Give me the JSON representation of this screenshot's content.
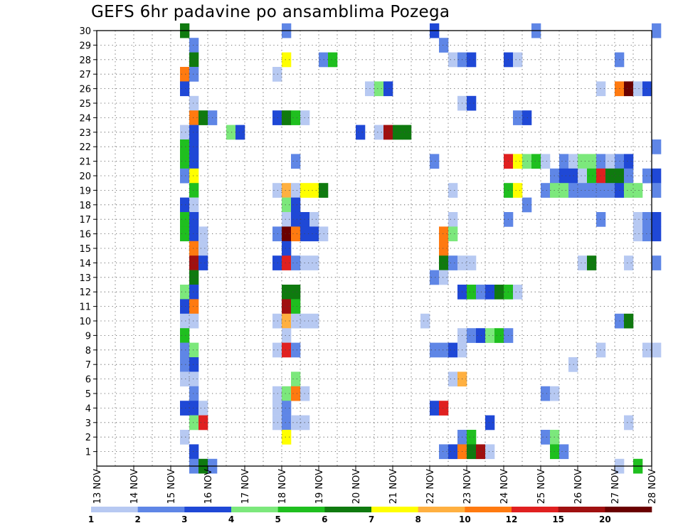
{
  "chart_data": {
    "type": "heatmap",
    "title": "GEFS 6hr padavine po ansamblima Pozega",
    "xlabel": "",
    "ylabel": "",
    "x_ticks": [
      "13 NOV",
      "14 NOV",
      "15 NOV",
      "16 NOV",
      "17 NOV",
      "18 NOV",
      "19 NOV",
      "20 NOV",
      "21 NOV",
      "22 NOV",
      "23 NOV",
      "24 NOV",
      "25 NOV",
      "26 NOV",
      "27 NOV",
      "28 NOV"
    ],
    "xlim": [
      "13 NOV 00Z",
      "28 NOV 00Z"
    ],
    "ylim": [
      0,
      30
    ],
    "y_ticks": [
      1,
      2,
      3,
      4,
      5,
      6,
      7,
      8,
      9,
      10,
      11,
      12,
      13,
      14,
      15,
      16,
      17,
      18,
      19,
      20,
      21,
      22,
      23,
      24,
      25,
      26,
      27,
      28,
      29,
      30
    ],
    "grid": true,
    "legend": {
      "placement": "bottom",
      "labels": [
        "1",
        "2",
        "3",
        "4",
        "5",
        "6",
        "7",
        "8",
        "10",
        "12",
        "15",
        "20"
      ],
      "colors": [
        "#b7c9f2",
        "#5f86e6",
        "#1f48d6",
        "#7ce87c",
        "#1fbf1f",
        "#0f7a0f",
        "#ffff00",
        "#ffb040",
        "#ff7a10",
        "#e02020",
        "#a01010",
        "#6a0000"
      ]
    },
    "cells": [
      [
        15.25,
        30,
        5
      ],
      [
        18.0,
        30,
        1
      ],
      [
        22.0,
        30,
        2
      ],
      [
        24.75,
        30,
        1
      ],
      [
        28.0,
        30,
        1
      ],
      [
        15.5,
        29,
        1
      ],
      [
        22.25,
        29,
        1
      ],
      [
        15.5,
        28,
        5
      ],
      [
        18.0,
        28,
        6
      ],
      [
        19.0,
        28,
        1
      ],
      [
        19.25,
        28,
        4
      ],
      [
        22.5,
        28,
        0
      ],
      [
        22.75,
        28,
        1
      ],
      [
        23.0,
        28,
        2
      ],
      [
        24.0,
        28,
        2
      ],
      [
        24.25,
        28,
        0
      ],
      [
        27.0,
        28,
        1
      ],
      [
        15.25,
        27,
        8
      ],
      [
        15.5,
        27,
        1
      ],
      [
        17.75,
        27,
        0
      ],
      [
        15.25,
        26,
        2
      ],
      [
        20.25,
        26,
        0
      ],
      [
        20.5,
        26,
        3
      ],
      [
        20.75,
        26,
        2
      ],
      [
        26.5,
        26,
        0
      ],
      [
        27.0,
        26,
        8
      ],
      [
        27.25,
        26,
        11
      ],
      [
        27.5,
        26,
        0
      ],
      [
        27.75,
        26,
        2
      ],
      [
        15.5,
        25,
        0
      ],
      [
        22.75,
        25,
        0
      ],
      [
        23.0,
        25,
        2
      ],
      [
        15.5,
        24,
        8
      ],
      [
        15.75,
        24,
        5
      ],
      [
        16.0,
        24,
        1
      ],
      [
        17.75,
        24,
        2
      ],
      [
        18.0,
        24,
        5
      ],
      [
        18.25,
        24,
        4
      ],
      [
        18.5,
        24,
        0
      ],
      [
        24.25,
        24,
        1
      ],
      [
        24.5,
        24,
        2
      ],
      [
        15.25,
        23,
        0
      ],
      [
        15.5,
        23,
        2
      ],
      [
        16.5,
        23,
        3
      ],
      [
        16.75,
        23,
        2
      ],
      [
        20.0,
        23,
        2
      ],
      [
        20.5,
        23,
        0
      ],
      [
        20.75,
        23,
        10
      ],
      [
        21.0,
        23,
        5
      ],
      [
        21.25,
        23,
        5
      ],
      [
        15.25,
        22,
        4
      ],
      [
        15.5,
        22,
        2
      ],
      [
        28.0,
        22,
        1
      ],
      [
        15.25,
        21,
        4
      ],
      [
        15.5,
        21,
        2
      ],
      [
        18.25,
        21,
        1
      ],
      [
        22.0,
        21,
        1
      ],
      [
        24.0,
        21,
        9
      ],
      [
        24.25,
        21,
        6
      ],
      [
        24.5,
        21,
        3
      ],
      [
        24.75,
        21,
        4
      ],
      [
        25.0,
        21,
        0
      ],
      [
        25.5,
        21,
        1
      ],
      [
        25.75,
        21,
        0
      ],
      [
        26.0,
        21,
        3
      ],
      [
        26.25,
        21,
        3
      ],
      [
        26.5,
        21,
        1
      ],
      [
        26.75,
        21,
        0
      ],
      [
        27.0,
        21,
        1
      ],
      [
        27.25,
        21,
        2
      ],
      [
        15.25,
        20,
        1
      ],
      [
        15.5,
        20,
        6
      ],
      [
        25.25,
        20,
        1
      ],
      [
        25.5,
        20,
        2
      ],
      [
        25.75,
        20,
        2
      ],
      [
        26.0,
        20,
        0
      ],
      [
        26.25,
        20,
        4
      ],
      [
        26.5,
        20,
        9
      ],
      [
        26.75,
        20,
        5
      ],
      [
        27.0,
        20,
        5
      ],
      [
        27.25,
        20,
        1
      ],
      [
        27.75,
        20,
        1
      ],
      [
        28.0,
        20,
        2
      ],
      [
        15.5,
        19,
        4
      ],
      [
        17.75,
        19,
        0
      ],
      [
        18.0,
        19,
        7
      ],
      [
        18.25,
        19,
        0
      ],
      [
        18.5,
        19,
        6
      ],
      [
        18.75,
        19,
        6
      ],
      [
        19.0,
        19,
        5
      ],
      [
        22.5,
        19,
        0
      ],
      [
        24.0,
        19,
        4
      ],
      [
        24.25,
        19,
        6
      ],
      [
        25.0,
        19,
        1
      ],
      [
        25.25,
        19,
        3
      ],
      [
        25.5,
        19,
        3
      ],
      [
        25.75,
        19,
        1
      ],
      [
        26.0,
        19,
        1
      ],
      [
        26.25,
        19,
        1
      ],
      [
        26.5,
        19,
        1
      ],
      [
        26.75,
        19,
        1
      ],
      [
        27.0,
        19,
        2
      ],
      [
        27.25,
        19,
        3
      ],
      [
        27.5,
        19,
        3
      ],
      [
        28.0,
        19,
        1
      ],
      [
        15.25,
        18,
        2
      ],
      [
        15.5,
        18,
        0
      ],
      [
        18.0,
        18,
        3
      ],
      [
        18.25,
        18,
        2
      ],
      [
        24.5,
        18,
        1
      ],
      [
        15.25,
        17,
        4
      ],
      [
        15.5,
        17,
        2
      ],
      [
        18.0,
        17,
        0
      ],
      [
        18.25,
        17,
        2
      ],
      [
        18.5,
        17,
        2
      ],
      [
        18.75,
        17,
        0
      ],
      [
        22.5,
        17,
        0
      ],
      [
        24.0,
        17,
        1
      ],
      [
        26.5,
        17,
        1
      ],
      [
        27.5,
        17,
        0
      ],
      [
        27.75,
        17,
        1
      ],
      [
        28.0,
        17,
        2
      ],
      [
        15.25,
        16,
        4
      ],
      [
        15.5,
        16,
        2
      ],
      [
        15.75,
        16,
        0
      ],
      [
        17.75,
        16,
        1
      ],
      [
        18.0,
        16,
        11
      ],
      [
        18.25,
        16,
        8
      ],
      [
        18.5,
        16,
        2
      ],
      [
        18.75,
        16,
        2
      ],
      [
        19.0,
        16,
        0
      ],
      [
        22.25,
        16,
        8
      ],
      [
        22.5,
        16,
        3
      ],
      [
        27.5,
        16,
        0
      ],
      [
        27.75,
        16,
        1
      ],
      [
        28.0,
        16,
        2
      ],
      [
        15.5,
        15,
        8
      ],
      [
        15.75,
        15,
        0
      ],
      [
        18.0,
        15,
        2
      ],
      [
        22.25,
        15,
        8
      ],
      [
        15.5,
        14,
        10
      ],
      [
        15.75,
        14,
        2
      ],
      [
        17.75,
        14,
        2
      ],
      [
        18.0,
        14,
        9
      ],
      [
        18.25,
        14,
        1
      ],
      [
        18.5,
        14,
        0
      ],
      [
        18.75,
        14,
        0
      ],
      [
        22.25,
        14,
        5
      ],
      [
        22.5,
        14,
        1
      ],
      [
        22.75,
        14,
        0
      ],
      [
        23.0,
        14,
        0
      ],
      [
        26.0,
        14,
        0
      ],
      [
        26.25,
        14,
        5
      ],
      [
        27.25,
        14,
        0
      ],
      [
        28.0,
        14,
        1
      ],
      [
        15.5,
        13,
        5
      ],
      [
        22.0,
        13,
        1
      ],
      [
        22.25,
        13,
        0
      ],
      [
        15.25,
        12,
        3
      ],
      [
        15.5,
        12,
        2
      ],
      [
        18.0,
        12,
        5
      ],
      [
        18.25,
        12,
        5
      ],
      [
        22.75,
        12,
        2
      ],
      [
        23.0,
        12,
        4
      ],
      [
        23.25,
        12,
        1
      ],
      [
        23.5,
        12,
        2
      ],
      [
        23.75,
        12,
        5
      ],
      [
        24.0,
        12,
        4
      ],
      [
        24.25,
        12,
        0
      ],
      [
        15.25,
        11,
        2
      ],
      [
        15.5,
        11,
        8
      ],
      [
        18.0,
        11,
        10
      ],
      [
        18.25,
        11,
        4
      ],
      [
        15.25,
        10,
        0
      ],
      [
        15.5,
        10,
        0
      ],
      [
        17.75,
        10,
        0
      ],
      [
        18.0,
        10,
        7
      ],
      [
        18.25,
        10,
        0
      ],
      [
        18.5,
        10,
        0
      ],
      [
        18.75,
        10,
        0
      ],
      [
        21.75,
        10,
        0
      ],
      [
        27.0,
        10,
        1
      ],
      [
        27.25,
        10,
        5
      ],
      [
        15.25,
        9,
        4
      ],
      [
        18.0,
        9,
        0
      ],
      [
        22.75,
        9,
        0
      ],
      [
        23.0,
        9,
        1
      ],
      [
        23.25,
        9,
        2
      ],
      [
        23.5,
        9,
        3
      ],
      [
        23.75,
        9,
        4
      ],
      [
        24.0,
        9,
        1
      ],
      [
        15.25,
        8,
        1
      ],
      [
        15.5,
        8,
        3
      ],
      [
        17.75,
        8,
        0
      ],
      [
        18.0,
        8,
        9
      ],
      [
        18.25,
        8,
        1
      ],
      [
        22.0,
        8,
        1
      ],
      [
        22.25,
        8,
        1
      ],
      [
        22.5,
        8,
        2
      ],
      [
        22.75,
        8,
        0
      ],
      [
        26.5,
        8,
        0
      ],
      [
        27.75,
        8,
        0
      ],
      [
        28.0,
        8,
        0
      ],
      [
        15.25,
        7,
        1
      ],
      [
        15.5,
        7,
        2
      ],
      [
        25.75,
        7,
        0
      ],
      [
        15.25,
        6,
        0
      ],
      [
        15.5,
        6,
        0
      ],
      [
        18.25,
        6,
        3
      ],
      [
        22.5,
        6,
        0
      ],
      [
        22.75,
        6,
        7
      ],
      [
        15.5,
        5,
        1
      ],
      [
        17.75,
        5,
        0
      ],
      [
        18.0,
        5,
        3
      ],
      [
        18.25,
        5,
        8
      ],
      [
        18.5,
        5,
        0
      ],
      [
        25.0,
        5,
        1
      ],
      [
        25.25,
        5,
        0
      ],
      [
        15.25,
        4,
        2
      ],
      [
        15.5,
        4,
        2
      ],
      [
        15.75,
        4,
        0
      ],
      [
        17.75,
        4,
        0
      ],
      [
        18.0,
        4,
        1
      ],
      [
        22.0,
        4,
        2
      ],
      [
        22.25,
        4,
        9
      ],
      [
        15.5,
        3,
        3
      ],
      [
        15.75,
        3,
        9
      ],
      [
        17.75,
        3,
        0
      ],
      [
        18.0,
        3,
        1
      ],
      [
        18.25,
        3,
        0
      ],
      [
        18.5,
        3,
        0
      ],
      [
        23.5,
        3,
        2
      ],
      [
        27.25,
        3,
        0
      ],
      [
        15.25,
        2,
        0
      ],
      [
        18.0,
        2,
        6
      ],
      [
        22.75,
        2,
        1
      ],
      [
        23.0,
        2,
        4
      ],
      [
        25.0,
        2,
        1
      ],
      [
        25.25,
        2,
        3
      ],
      [
        15.5,
        1,
        2
      ],
      [
        22.25,
        1,
        1
      ],
      [
        22.5,
        1,
        2
      ],
      [
        22.75,
        1,
        8
      ],
      [
        23.0,
        1,
        5
      ],
      [
        23.25,
        1,
        10
      ],
      [
        23.5,
        1,
        0
      ],
      [
        25.25,
        1,
        4
      ],
      [
        25.5,
        1,
        1
      ],
      [
        15.5,
        0,
        1
      ],
      [
        15.75,
        0,
        5
      ],
      [
        16.0,
        0,
        1
      ],
      [
        27.0,
        0,
        0
      ],
      [
        27.5,
        0,
        4
      ]
    ]
  }
}
